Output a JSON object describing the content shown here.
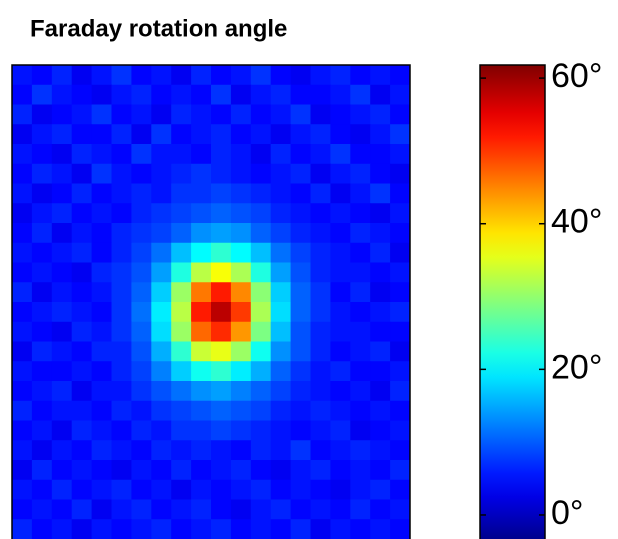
{
  "chart_data": {
    "type": "heatmap",
    "title": "Faraday rotation angle",
    "colormap": "jet",
    "clim": [
      -3.3,
      61.8
    ],
    "cticks": [
      {
        "value": 0,
        "label": "0°"
      },
      {
        "value": 20,
        "label": "20°"
      },
      {
        "value": 40,
        "label": "40°"
      },
      {
        "value": 60,
        "label": "60°"
      }
    ],
    "z": [
      [
        6,
        5,
        7,
        4,
        6,
        8,
        5,
        6,
        4,
        7,
        5,
        6,
        8,
        5,
        4,
        6,
        7,
        5,
        6,
        5
      ],
      [
        5,
        8,
        6,
        5,
        4,
        6,
        7,
        5,
        6,
        5,
        8,
        4,
        6,
        7,
        5,
        5,
        6,
        8,
        4,
        6
      ],
      [
        7,
        4,
        5,
        6,
        8,
        5,
        6,
        4,
        7,
        6,
        5,
        7,
        5,
        6,
        8,
        4,
        5,
        6,
        7,
        5
      ],
      [
        4,
        6,
        7,
        5,
        5,
        7,
        4,
        8,
        5,
        6,
        7,
        5,
        6,
        4,
        6,
        7,
        5,
        4,
        6,
        8
      ],
      [
        6,
        5,
        4,
        7,
        6,
        5,
        8,
        6,
        6,
        5,
        7,
        6,
        4,
        7,
        5,
        6,
        8,
        5,
        5,
        6
      ],
      [
        5,
        7,
        6,
        4,
        8,
        6,
        5,
        6,
        7,
        8,
        7,
        6,
        5,
        6,
        7,
        4,
        6,
        7,
        5,
        4
      ],
      [
        6,
        4,
        5,
        7,
        5,
        6,
        7,
        6,
        8,
        8,
        9,
        8,
        7,
        6,
        5,
        7,
        4,
        6,
        8,
        5
      ],
      [
        4,
        6,
        7,
        5,
        6,
        5,
        7,
        8,
        9,
        10,
        11,
        10,
        9,
        7,
        6,
        5,
        6,
        5,
        4,
        6
      ],
      [
        5,
        7,
        4,
        6,
        5,
        7,
        8,
        9,
        11,
        14,
        15,
        14,
        11,
        9,
        7,
        6,
        5,
        7,
        6,
        5
      ],
      [
        6,
        5,
        6,
        7,
        5,
        7,
        9,
        12,
        17,
        21,
        24,
        21,
        17,
        12,
        9,
        7,
        6,
        5,
        7,
        4
      ],
      [
        5,
        6,
        5,
        4,
        7,
        8,
        10,
        15,
        23,
        33,
        37,
        32,
        23,
        15,
        10,
        7,
        6,
        6,
        5,
        6
      ],
      [
        7,
        4,
        6,
        5,
        6,
        8,
        11,
        18,
        31,
        46,
        52,
        45,
        30,
        18,
        11,
        8,
        5,
        7,
        4,
        5
      ],
      [
        5,
        6,
        7,
        6,
        5,
        8,
        12,
        20,
        33,
        52,
        58,
        50,
        32,
        19,
        11,
        8,
        6,
        5,
        6,
        7
      ],
      [
        6,
        5,
        4,
        7,
        6,
        8,
        11,
        19,
        31,
        47,
        51,
        44,
        29,
        17,
        10,
        7,
        6,
        6,
        5,
        5
      ],
      [
        4,
        7,
        6,
        5,
        7,
        7,
        10,
        16,
        24,
        34,
        36,
        31,
        22,
        14,
        10,
        7,
        5,
        6,
        7,
        4
      ],
      [
        6,
        5,
        5,
        6,
        5,
        7,
        9,
        13,
        18,
        22,
        24,
        20,
        16,
        11,
        8,
        6,
        7,
        5,
        5,
        6
      ],
      [
        5,
        6,
        7,
        4,
        6,
        6,
        8,
        10,
        12,
        14,
        15,
        13,
        11,
        9,
        7,
        6,
        5,
        6,
        4,
        7
      ],
      [
        7,
        5,
        6,
        6,
        5,
        7,
        6,
        8,
        9,
        10,
        11,
        10,
        9,
        7,
        6,
        7,
        6,
        5,
        6,
        5
      ],
      [
        5,
        6,
        4,
        7,
        6,
        5,
        7,
        6,
        8,
        8,
        9,
        8,
        7,
        6,
        5,
        6,
        7,
        4,
        5,
        6
      ],
      [
        6,
        4,
        6,
        5,
        7,
        6,
        5,
        7,
        6,
        7,
        6,
        5,
        7,
        6,
        8,
        5,
        6,
        7,
        6,
        5
      ],
      [
        4,
        7,
        5,
        6,
        5,
        4,
        6,
        5,
        7,
        5,
        6,
        7,
        5,
        4,
        6,
        7,
        5,
        6,
        5,
        7
      ],
      [
        6,
        5,
        7,
        5,
        6,
        7,
        5,
        6,
        4,
        6,
        5,
        6,
        7,
        5,
        6,
        5,
        4,
        6,
        7,
        5
      ],
      [
        5,
        6,
        5,
        7,
        4,
        6,
        7,
        5,
        6,
        7,
        5,
        4,
        6,
        7,
        5,
        6,
        5,
        7,
        5,
        6
      ],
      [
        7,
        5,
        6,
        4,
        6,
        5,
        6,
        7,
        5,
        6,
        7,
        5,
        6,
        5,
        7,
        4,
        6,
        5,
        6,
        5
      ]
    ]
  }
}
